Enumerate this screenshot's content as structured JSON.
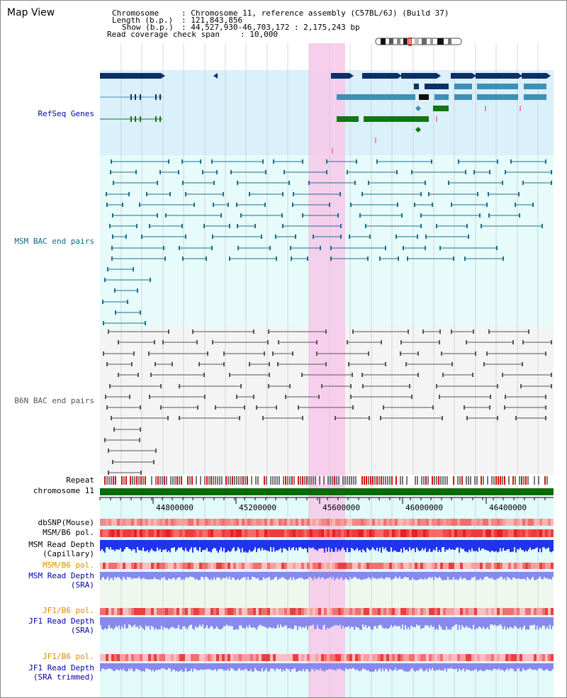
{
  "title": "Map View",
  "header": {
    "chromosome_label": "Chromosome",
    "chromosome_value": ": Chromosome 11, reference assembly (C57BL/6J) (Build 37)",
    "length_label": "Length (b.p.)",
    "length_value": ": 121,843,856",
    "show_label": "Show (b.p.)",
    "show_value": ": 44,527,930-46,703,172 : 2,175,243 bp",
    "coverage_label": "Read coverage check span",
    "coverage_value": ": 10,000"
  },
  "tracks": {
    "refseq": "RefSeq Genes",
    "msm_bac": "MSM BAC end pairs",
    "b6n_bac": "B6N BAC end pairs",
    "repeat": "Repeat",
    "chrom": "chromosome 11",
    "dbsnp": "dbSNP(Mouse)",
    "msm_pol1": "MSM/B6 pol.",
    "msm_depth_cap_1": "MSM Read Depth",
    "msm_depth_cap_2": "(Capillary)",
    "msm_pol2": "MSM/B6 pol.",
    "msm_depth_sra_1": "MSM Read Depth",
    "msm_depth_sra_2": "(SRA)",
    "jf1_pol1": "JF1/B6 pol.",
    "jf1_depth_1": "JF1 Read Depth",
    "jf1_depth_2": "(SRA)",
    "jf1_pol2": "JF1/B6 pol.",
    "jf1_trim_1": "JF1 Read Depth",
    "jf1_trim_2": "(SRA trimmed)"
  },
  "axis_ticks": [
    "44800000",
    "45200000",
    "45600000",
    "46000000",
    "46400000"
  ],
  "colors": {
    "refseq_dark": "#0b2f66",
    "refseq_mid": "#3f8fb8",
    "refseq_green": "#117711",
    "msm_line": "#1d6e8e",
    "b6n_line": "#555555",
    "highlight": "#f7c8ea",
    "chrom_green": "#0a6a0a",
    "depth_blue": "#2233ee",
    "depth_light": "#8888ee"
  }
}
